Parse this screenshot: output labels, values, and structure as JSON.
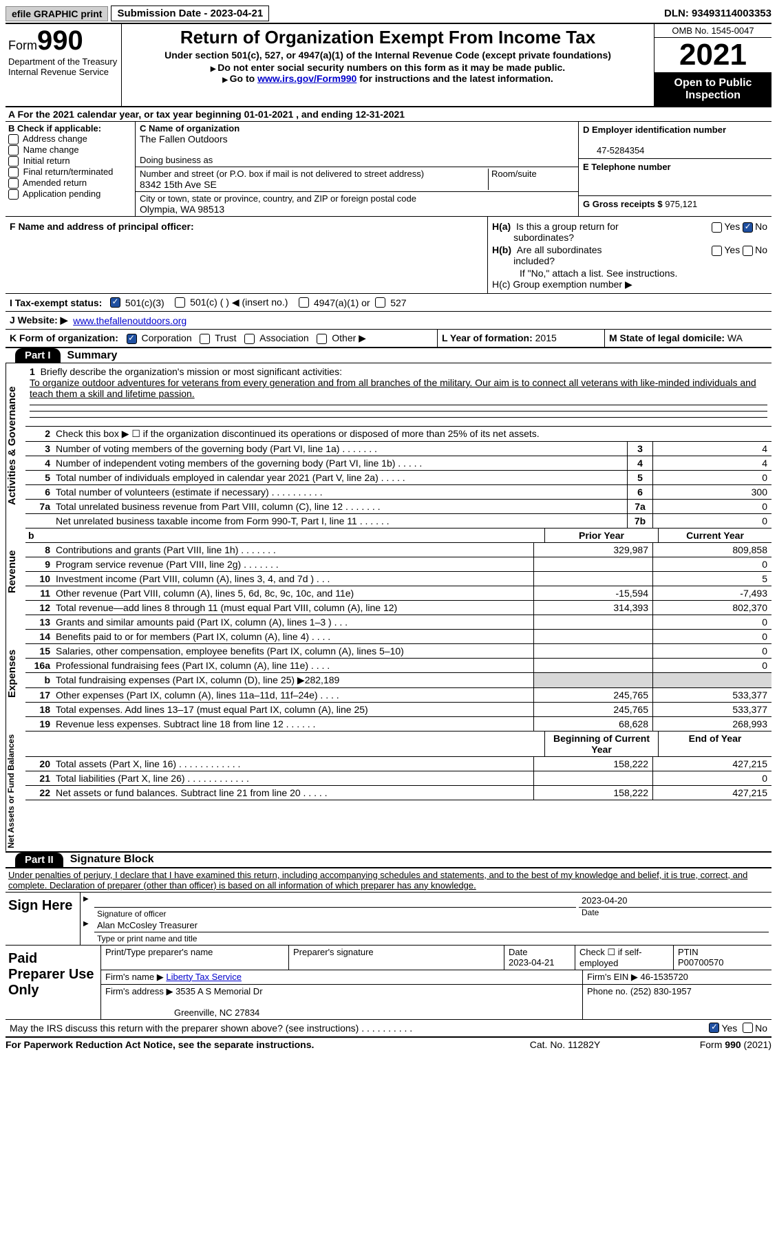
{
  "topbar": {
    "efile": "efile GRAPHIC print",
    "submission": "Submission Date - 2023-04-21",
    "dln": "DLN: 93493114003353"
  },
  "header": {
    "form_label": "Form",
    "form_num": "990",
    "dept": "Department of the Treasury",
    "irs": "Internal Revenue Service",
    "title": "Return of Organization Exempt From Income Tax",
    "sub1": "Under section 501(c), 527, or 4947(a)(1) of the Internal Revenue Code (except private foundations)",
    "sub2": "Do not enter social security numbers on this form as it may be made public.",
    "sub3a": "Go to ",
    "sub3link": "www.irs.gov/Form990",
    "sub3b": " for instructions and the latest information.",
    "omb": "OMB No. 1545-0047",
    "year": "2021",
    "open": "Open to Public Inspection"
  },
  "row_a": "For the 2021 calendar year, or tax year beginning 01-01-2021    , and ending 12-31-2021",
  "col_b": {
    "label": "B Check if applicable:",
    "items": [
      "Address change",
      "Name change",
      "Initial return",
      "Final return/terminated",
      "Amended return",
      "Application pending"
    ]
  },
  "col_c": {
    "c_label": "C Name of organization",
    "c_val": "The Fallen Outdoors",
    "dba": "Doing business as",
    "addr_label": "Number and street (or P.O. box if mail is not delivered to street address)",
    "room": "Room/suite",
    "addr_val": "8342 15th Ave SE",
    "city_label": "City or town, state or province, country, and ZIP or foreign postal code",
    "city_val": "Olympia, WA  98513"
  },
  "col_d": {
    "d_label": "D Employer identification number",
    "d_val": "47-5284354",
    "e_label": "E Telephone number",
    "g_label": "G Gross receipts $",
    "g_val": "975,121"
  },
  "f": {
    "label": "F  Name and address of principal officer:"
  },
  "h": {
    "a_label": "H(a)  Is this a group return for subordinates?",
    "b_label": "H(b)  Are all subordinates included?",
    "b_note": "If \"No,\" attach a list. See instructions.",
    "c_label": "H(c)  Group exemption number ▶",
    "yes": "Yes",
    "no": "No"
  },
  "i": {
    "label": "I    Tax-exempt status:",
    "opts": [
      "501(c)(3)",
      "501(c) (  ) ◀ (insert no.)",
      "4947(a)(1) or",
      "527"
    ]
  },
  "j": {
    "label": "J    Website: ▶",
    "val": "www.thefallenoutdoors.org"
  },
  "k": {
    "label": "K Form of organization:",
    "opts": [
      "Corporation",
      "Trust",
      "Association",
      "Other ▶"
    ]
  },
  "l": {
    "label": "L Year of formation:",
    "val": "2015"
  },
  "m": {
    "label": "M State of legal domicile:",
    "val": "WA"
  },
  "part1": {
    "tab": "Part I",
    "title": "Summary"
  },
  "mission": {
    "lead": "Briefly describe the organization's mission or most significant activities:",
    "text": "To organize outdoor adventures for veterans from every generation and from all branches of the military. Our aim is to connect all veterans with like-minded individuals and teach them a skill and lifetime passion."
  },
  "lines_gov": [
    {
      "n": "2",
      "d": "Check this box ▶ ☐  if the organization discontinued its operations or disposed of more than 25% of its net assets."
    },
    {
      "n": "3",
      "d": "Number of voting members of the governing body (Part VI, line 1a)   .       .       .       .       .       .       .",
      "b": "3",
      "v": "4"
    },
    {
      "n": "4",
      "d": "Number of independent voting members of the governing body (Part VI, line 1b)    .       .       .       .       .",
      "b": "4",
      "v": "4"
    },
    {
      "n": "5",
      "d": "Total number of individuals employed in calendar year 2021 (Part V, line 2a)     .       .       .       .       .",
      "b": "5",
      "v": "0"
    },
    {
      "n": "6",
      "d": "Total number of volunteers (estimate if necessary)      .       .       .       .       .       .       .       .       .       .",
      "b": "6",
      "v": "300"
    },
    {
      "n": "7a",
      "d": "Total unrelated business revenue from Part VIII, column (C), line 12    .       .       .       .       .       .       .",
      "b": "7a",
      "v": "0"
    },
    {
      "n": "",
      "d": "Net unrelated business taxable income from Form 990-T, Part I, line 11    .       .       .       .       .       .",
      "b": "7b",
      "v": "0"
    }
  ],
  "col_hdrs": {
    "b": "b",
    "py": "Prior Year",
    "cy": "Current Year"
  },
  "lines_rev": [
    {
      "n": "8",
      "d": "Contributions and grants (Part VIII, line 1h)     .       .       .       .       .       .       .",
      "py": "329,987",
      "cy": "809,858"
    },
    {
      "n": "9",
      "d": "Program service revenue (Part VIII, line 2g)     .       .       .       .       .       .       .",
      "py": "",
      "cy": "0"
    },
    {
      "n": "10",
      "d": "Investment income (Part VIII, column (A), lines 3, 4, and 7d )     .       .       .",
      "py": "",
      "cy": "5"
    },
    {
      "n": "11",
      "d": "Other revenue (Part VIII, column (A), lines 5, 6d, 8c, 9c, 10c, and 11e)",
      "py": "-15,594",
      "cy": "-7,493"
    },
    {
      "n": "12",
      "d": "Total revenue—add lines 8 through 11 (must equal Part VIII, column (A), line 12)",
      "py": "314,393",
      "cy": "802,370"
    }
  ],
  "lines_exp": [
    {
      "n": "13",
      "d": "Grants and similar amounts paid (Part IX, column (A), lines 1–3 )    .       .       .",
      "py": "",
      "cy": "0"
    },
    {
      "n": "14",
      "d": "Benefits paid to or for members (Part IX, column (A), line 4)    .       .       .       .",
      "py": "",
      "cy": "0"
    },
    {
      "n": "15",
      "d": "Salaries, other compensation, employee benefits (Part IX, column (A), lines 5–10)",
      "py": "",
      "cy": "0"
    },
    {
      "n": "16a",
      "d": "Professional fundraising fees (Part IX, column (A), line 11e)    .       .       .       .",
      "py": "",
      "cy": "0"
    },
    {
      "n": "b",
      "d": "Total fundraising expenses (Part IX, column (D), line 25) ▶282,189",
      "py": "shade",
      "cy": "shade"
    },
    {
      "n": "17",
      "d": "Other expenses (Part IX, column (A), lines 11a–11d, 11f–24e)    .       .       .       .",
      "py": "245,765",
      "cy": "533,377"
    },
    {
      "n": "18",
      "d": "Total expenses. Add lines 13–17 (must equal Part IX, column (A), line 25)",
      "py": "245,765",
      "cy": "533,377"
    },
    {
      "n": "19",
      "d": "Revenue less expenses. Subtract line 18 from line 12   .       .       .       .       .       .",
      "py": "68,628",
      "cy": "268,993"
    }
  ],
  "col_hdrs2": {
    "py": "Beginning of Current Year",
    "cy": "End of Year"
  },
  "lines_net": [
    {
      "n": "20",
      "d": "Total assets (Part X, line 16)   .       .       .       .       .       .       .       .       .       .       .       .",
      "py": "158,222",
      "cy": "427,215"
    },
    {
      "n": "21",
      "d": "Total liabilities (Part X, line 26)   .       .       .       .       .       .       .       .       .       .       .       .",
      "py": "",
      "cy": "0"
    },
    {
      "n": "22",
      "d": "Net assets or fund balances. Subtract line 21 from line 20    .       .       .       .       .",
      "py": "158,222",
      "cy": "427,215"
    }
  ],
  "part2": {
    "tab": "Part II",
    "title": "Signature Block"
  },
  "sig": {
    "decl": "Under penalties of perjury, I declare that I have examined this return, including accompanying schedules and statements, and to the best of my knowledge and belief, it is true, correct, and complete. Declaration of preparer (other than officer) is based on all information of which preparer has any knowledge.",
    "here": "Sign Here",
    "date": "2023-04-20",
    "sig_officer": "Signature of officer",
    "date_lbl": "Date",
    "name": "Alan McCosley  Treasurer",
    "name_lbl": "Type or print name and title"
  },
  "prep": {
    "label": "Paid Preparer Use Only",
    "r1": {
      "a": "Print/Type preparer's name",
      "b": "Preparer's signature",
      "c": "Date",
      "cv": "2023-04-21",
      "d": "Check ☐ if self-employed",
      "e": "PTIN",
      "ev": "P00700570"
    },
    "r2": {
      "a": "Firm's name     ▶",
      "av": "Liberty Tax Service",
      "b": "Firm's EIN ▶",
      "bv": "46-1535720"
    },
    "r3": {
      "a": "Firm's address ▶",
      "av": "3535 A S Memorial Dr",
      "b": "Phone no.",
      "bv": "(252) 830-1957"
    },
    "r3b": "Greenville, NC  27834"
  },
  "discuss": {
    "q": "May the IRS discuss this return with the preparer shown above? (see instructions)    .       .       .       .       .       .       .       .       .       .",
    "yes": "Yes",
    "no": "No"
  },
  "footer": {
    "l": "For Paperwork Reduction Act Notice, see the separate instructions.",
    "m": "Cat. No. 11282Y",
    "r": "Form 990 (2021)"
  },
  "side_labels": {
    "gov": "Activities & Governance",
    "rev": "Revenue",
    "exp": "Expenses",
    "net": "Net Assets or Fund Balances"
  }
}
